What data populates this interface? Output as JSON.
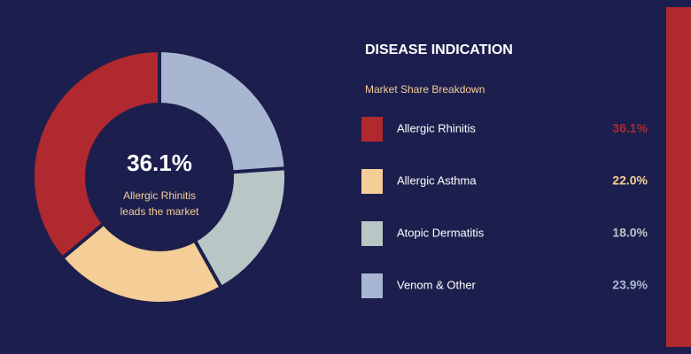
{
  "chart_data": {
    "type": "pie",
    "title": "DISEASE INDICATION",
    "subtitle": "Market Share Breakdown",
    "categories": [
      "Allergic Rhinitis",
      "Allergic Asthma",
      "Atopic Dermatitis",
      "Venom & Other"
    ],
    "values": [
      36.1,
      22.0,
      18.0,
      23.9
    ],
    "value_labels": [
      "36.1%",
      "22.0%",
      "18.0%",
      "23.9%"
    ],
    "colors": [
      "#b0292f",
      "#f5cd97",
      "#b8c6c6",
      "#a9b6d2"
    ],
    "center_annotation": [
      "Allergic Rhinitis",
      "leads the market"
    ]
  }
}
